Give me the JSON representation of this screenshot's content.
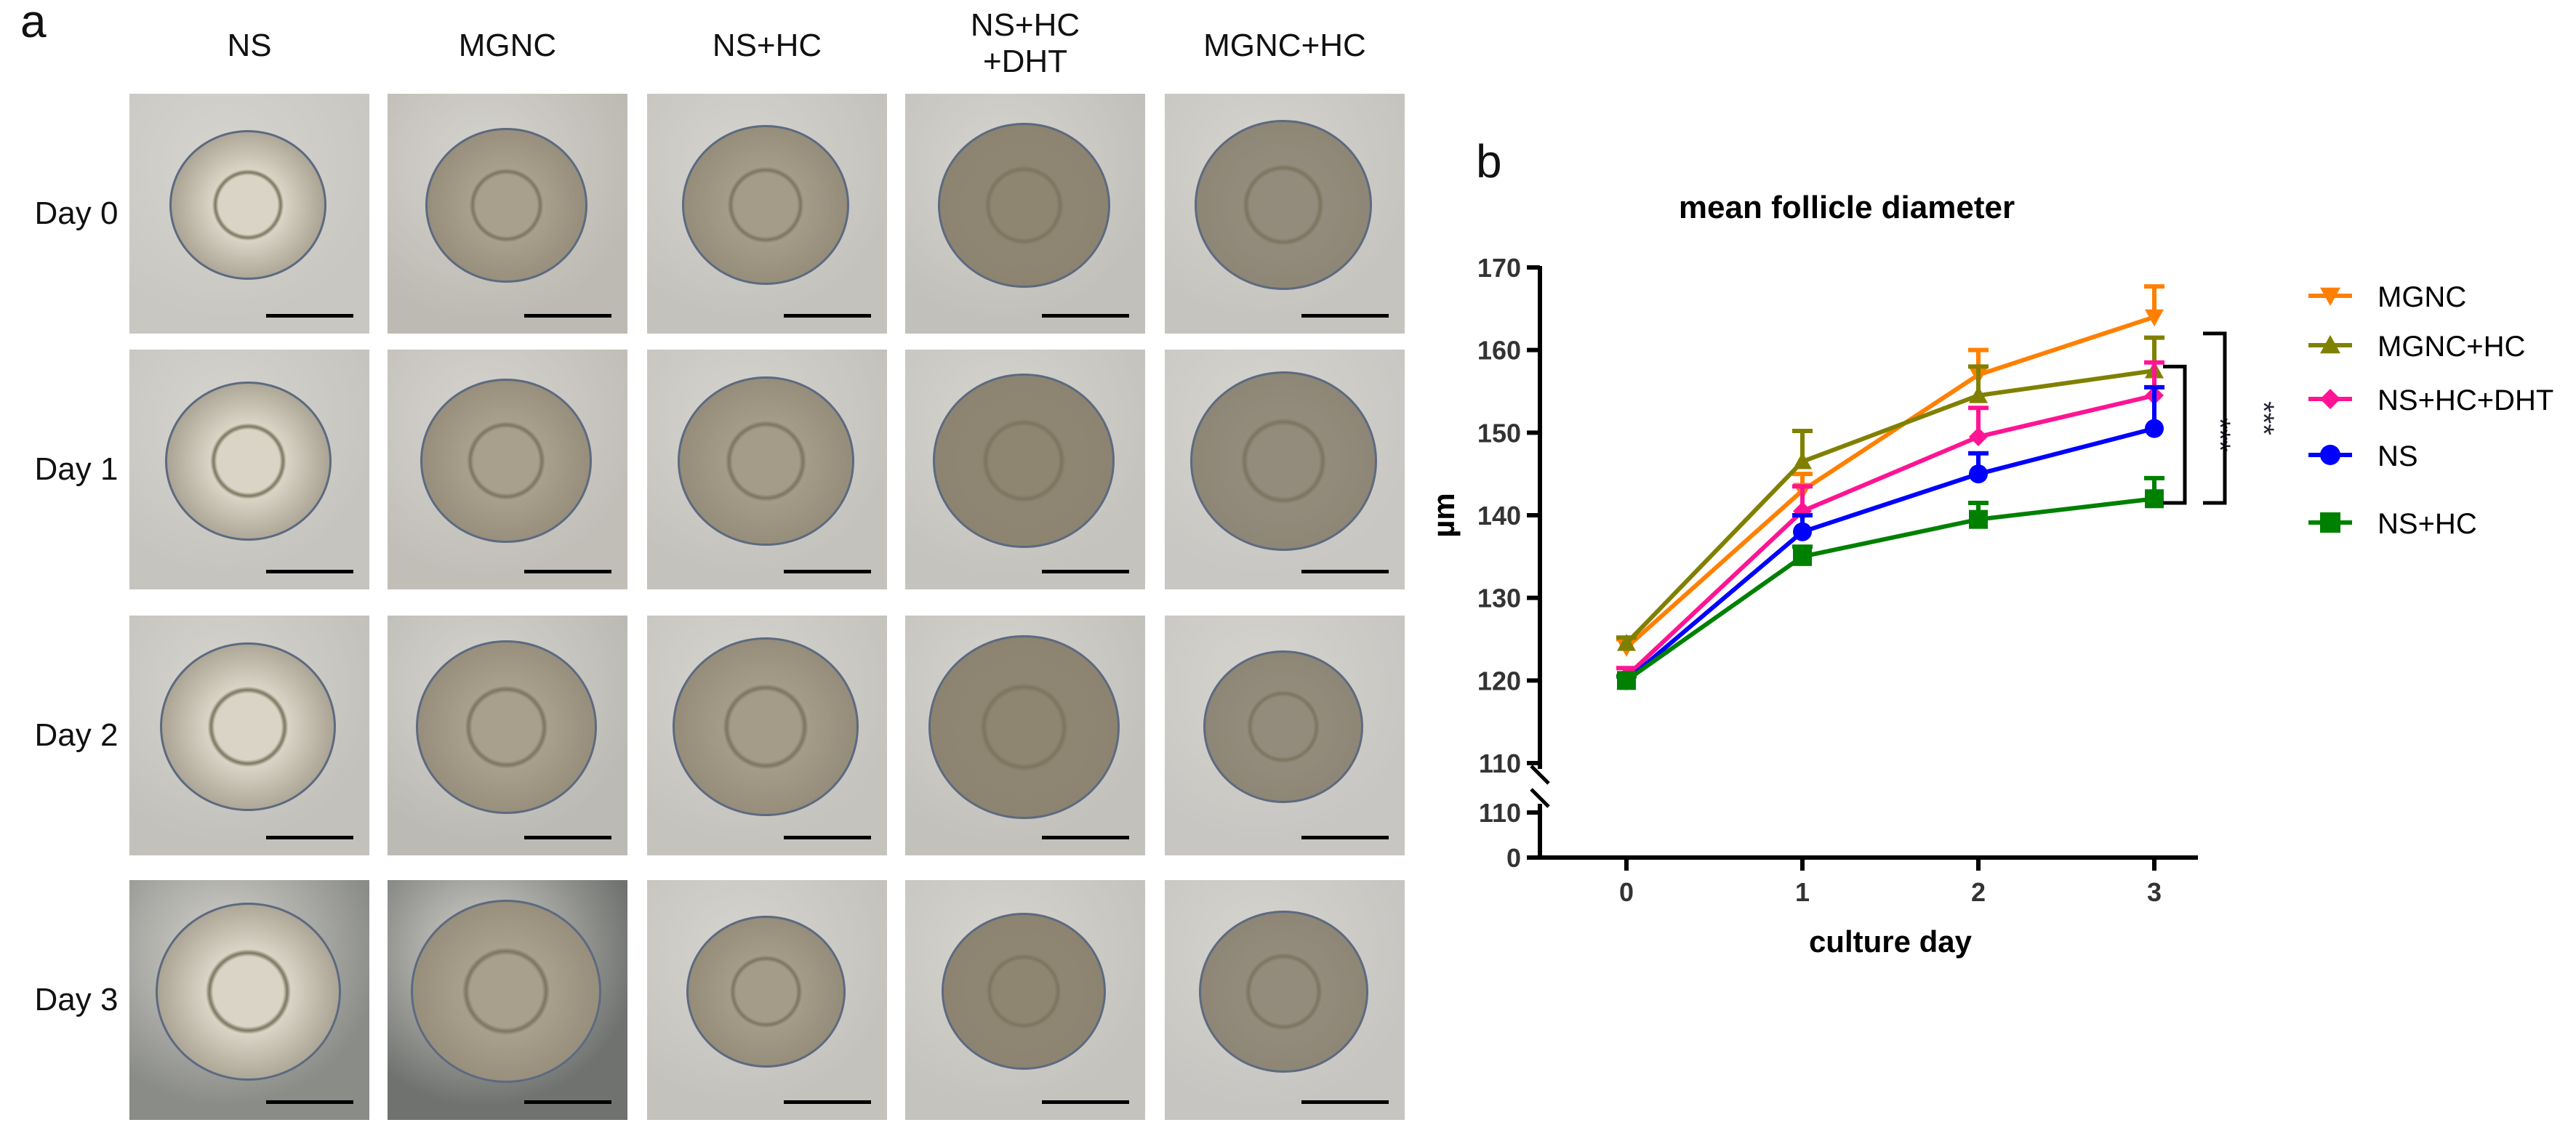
{
  "panel_a": {
    "letter": "a",
    "columns": [
      "NS",
      "MGNC",
      "NS+HC",
      "NS+HC\n+DHT",
      "MGNC+HC"
    ],
    "rows": [
      "Day 0",
      "Day 1",
      "Day 2",
      "Day 3"
    ]
  },
  "panel_b": {
    "letter": "b"
  },
  "chart_data": {
    "type": "line",
    "title": "mean follicle diameter",
    "xlabel": "culture day",
    "ylabel": "µm",
    "x": [
      0,
      1,
      2,
      3
    ],
    "x_ticks": [
      "0",
      "1",
      "2",
      "3"
    ],
    "y_ticks_upper": [
      "110",
      "120",
      "130",
      "140",
      "150",
      "160",
      "170"
    ],
    "y_ticks_lower": [
      "0",
      "110"
    ],
    "ylim": [
      110,
      170
    ],
    "y_axis_break": true,
    "legend_placement": "right",
    "grid": false,
    "series": [
      {
        "name": "MGNC",
        "color": "#ff8000",
        "marker": "triangle-down",
        "values": [
          124,
          143,
          157,
          164
        ],
        "errors": [
          1,
          2,
          3,
          3.7
        ]
      },
      {
        "name": "MGNC+HC",
        "color": "#808000",
        "marker": "triangle-up",
        "values": [
          124.5,
          146.5,
          154.5,
          157.5
        ],
        "errors": [
          0.7,
          3.7,
          3.5,
          4
        ]
      },
      {
        "name": "NS+HC+DHT",
        "color": "#ff1493",
        "marker": "diamond",
        "values": [
          120.5,
          140.5,
          149.5,
          154.5
        ],
        "errors": [
          1,
          3,
          3.5,
          4
        ]
      },
      {
        "name": "NS",
        "color": "#0000ff",
        "marker": "circle",
        "values": [
          120,
          138,
          145,
          150.5
        ],
        "errors": [
          0.5,
          2,
          2.5,
          5
        ]
      },
      {
        "name": "NS+HC",
        "color": "#008000",
        "marker": "square",
        "values": [
          120,
          135,
          139.5,
          142
        ],
        "errors": [
          0.5,
          1.2,
          2,
          2.5
        ]
      }
    ],
    "significance": [
      {
        "label": "***",
        "from_values": [
          158,
          141.5
        ]
      },
      {
        "label": "***",
        "from_values": [
          162,
          141.5
        ]
      }
    ]
  }
}
